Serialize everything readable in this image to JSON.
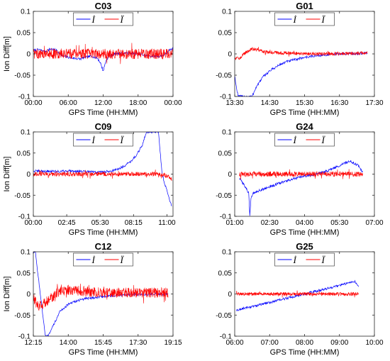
{
  "colors": {
    "series_a": "#0000ff",
    "series_b": "#ff0000"
  },
  "chart_data": [
    {
      "type": "line",
      "title": "C03",
      "xlabel": "GPS Time (HH:MM)",
      "ylabel": "Ion Diff[m]",
      "xlim": [
        0,
        24
      ],
      "ylim": [
        -0.1,
        0.1
      ],
      "x_ticks": [
        0,
        6,
        12,
        18,
        24
      ],
      "x_tick_labels": [
        "00:00",
        "06:00",
        "12:00",
        "18:00",
        "00:00"
      ],
      "y_ticks": [
        -0.1,
        -0.05,
        0,
        0.05,
        0.1
      ],
      "y_tick_labels": [
        "-0.1",
        "-0.05",
        "0",
        "0.05",
        "0.1"
      ],
      "legend": {
        "position": "top-center",
        "entries": [
          "İ",
          "Ï"
        ]
      },
      "series": [
        {
          "x": [
            0,
            1,
            2,
            3,
            4,
            5,
            6,
            7,
            8,
            9,
            10,
            11,
            11.5,
            12,
            12.5,
            13,
            14,
            16,
            18,
            20,
            22,
            23,
            23.5,
            24
          ],
          "y": [
            0.008,
            0.01,
            0.005,
            0.012,
            0.008,
            -0.005,
            -0.008,
            -0.01,
            -0.012,
            -0.008,
            -0.005,
            -0.01,
            -0.02,
            -0.04,
            -0.015,
            -0.005,
            0.0,
            0.002,
            0.0,
            -0.005,
            -0.005,
            0.002,
            0.01,
            0.012
          ]
        },
        {
          "x": [
            0,
            24
          ],
          "y": [
            0,
            0
          ],
          "noise_amplitude": 0.012
        }
      ]
    },
    {
      "type": "line",
      "title": "G01",
      "xlabel": "GPS Time (HH:MM)",
      "ylabel": "",
      "xlim": [
        13.5,
        17.5
      ],
      "ylim": [
        -0.1,
        0.1
      ],
      "x_ticks": [
        13.5,
        14.5,
        15.5,
        16.5,
        17.5
      ],
      "x_tick_labels": [
        "13:30",
        "14:30",
        "15:30",
        "16:30",
        "17:30"
      ],
      "y_ticks": [
        -0.1,
        -0.05,
        0,
        0.05,
        0.1
      ],
      "y_tick_labels": [
        "-0.1",
        "-0.05",
        "0",
        "0.05",
        "0.1"
      ],
      "legend": {
        "position": "top-center",
        "entries": [
          "İ",
          "Ï"
        ]
      },
      "series": [
        {
          "x": [
            13.5,
            13.55,
            13.6,
            13.62,
            14.0,
            14.1,
            14.3,
            14.5,
            14.8,
            15.0,
            15.5,
            16.0,
            16.5,
            17.0,
            17.3
          ],
          "y": [
            -0.05,
            -0.08,
            -0.1,
            -0.1,
            -0.1,
            -0.08,
            -0.055,
            -0.04,
            -0.025,
            -0.018,
            -0.008,
            -0.003,
            0.0,
            0.001,
            0.002
          ]
        },
        {
          "x": [
            13.5,
            13.65,
            13.8,
            14.0,
            14.3,
            14.6,
            15.0,
            15.5,
            16.0,
            17.3
          ],
          "y": [
            -0.01,
            -0.01,
            0.003,
            0.012,
            0.006,
            0.003,
            0.002,
            0.0,
            0.0,
            0.002
          ],
          "noise_amplitude": 0.004
        }
      ]
    },
    {
      "type": "line",
      "title": "C09",
      "xlabel": "GPS Time (HH:MM)",
      "ylabel": "Ion Diff[m]",
      "xlim": [
        0,
        11.5
      ],
      "ylim": [
        -0.1,
        0.1
      ],
      "x_ticks": [
        0,
        2.75,
        5.5,
        8.25,
        11
      ],
      "x_tick_labels": [
        "00:00",
        "02:45",
        "05:30",
        "08:15",
        "11:00"
      ],
      "y_ticks": [
        -0.1,
        -0.05,
        0,
        0.05,
        0.1
      ],
      "y_tick_labels": [
        "-0.1",
        "-0.05",
        "0",
        "0.05",
        "0.1"
      ],
      "legend": {
        "position": "top-center",
        "entries": [
          "İ",
          "Ï"
        ]
      },
      "series": [
        {
          "x": [
            0,
            1,
            2,
            3,
            4,
            5,
            5.5,
            6,
            6.5,
            7,
            7.5,
            8,
            8.5,
            9,
            9.3,
            9.6,
            10.3,
            10.6,
            10.8,
            11.0,
            11.2,
            11.4
          ],
          "y": [
            0.007,
            0.007,
            0.006,
            0.008,
            0.006,
            0.005,
            0.005,
            0.006,
            0.008,
            0.012,
            0.02,
            0.03,
            0.045,
            0.07,
            0.1,
            0.1,
            0.1,
            0.0,
            -0.02,
            -0.04,
            -0.06,
            -0.075
          ]
        },
        {
          "x": [
            0,
            10.5,
            11.0,
            11.4
          ],
          "y": [
            0,
            0,
            -0.005,
            -0.012
          ],
          "noise_amplitude": 0.005
        }
      ]
    },
    {
      "type": "line",
      "title": "G24",
      "xlabel": "GPS Time (HH:MM)",
      "ylabel": "",
      "xlim": [
        1,
        7
      ],
      "ylim": [
        -0.1,
        0.1
      ],
      "x_ticks": [
        1,
        2.5,
        4,
        5.5,
        7
      ],
      "x_tick_labels": [
        "01:00",
        "02:30",
        "04:00",
        "05:30",
        "07:00"
      ],
      "y_ticks": [
        -0.1,
        -0.05,
        0,
        0.05,
        0.1
      ],
      "y_tick_labels": [
        "-0.1",
        "-0.05",
        "0",
        "0.05",
        "0.1"
      ],
      "legend": {
        "position": "top-center",
        "entries": [
          "İ",
          "Ï"
        ]
      },
      "series": [
        {
          "x": [
            1.2,
            1.4,
            1.6,
            1.65,
            1.7,
            1.8,
            2.0,
            2.5,
            3.0,
            3.5,
            4.0,
            4.5,
            5.0,
            5.5,
            5.8,
            6.0,
            6.3,
            6.5
          ],
          "y": [
            -0.01,
            -0.025,
            -0.045,
            -0.1,
            -0.055,
            -0.045,
            -0.04,
            -0.03,
            -0.02,
            -0.012,
            -0.005,
            0.0,
            0.008,
            0.02,
            0.028,
            0.03,
            0.02,
            0.005
          ]
        },
        {
          "x": [
            1.2,
            6.5
          ],
          "y": [
            0,
            0
          ],
          "noise_amplitude": 0.006
        }
      ]
    },
    {
      "type": "line",
      "title": "C12",
      "xlabel": "GPS Time (HH:MM)",
      "ylabel": "Ion Diff[m]",
      "xlim": [
        12.25,
        19.25
      ],
      "ylim": [
        -0.1,
        0.1
      ],
      "x_ticks": [
        12.25,
        14,
        15.75,
        17.5,
        19.25
      ],
      "x_tick_labels": [
        "12:15",
        "14:00",
        "15:45",
        "17:30",
        "19:15"
      ],
      "y_ticks": [
        -0.1,
        -0.05,
        0,
        0.05,
        0.1
      ],
      "y_tick_labels": [
        "-0.1",
        "-0.05",
        "0",
        "0.05",
        "0.1"
      ],
      "legend": {
        "position": "top-center",
        "entries": [
          "İ",
          "Ï"
        ]
      },
      "series": [
        {
          "x": [
            12.25,
            12.35,
            12.45,
            12.55,
            12.7,
            12.85,
            13.0,
            13.2,
            13.4,
            13.6,
            14.0,
            14.5,
            15.0,
            16.0,
            17.0,
            18.0,
            19.0
          ],
          "y": [
            0.1,
            0.1,
            0.06,
            0.02,
            -0.04,
            -0.1,
            -0.1,
            -0.08,
            -0.06,
            -0.04,
            -0.025,
            -0.015,
            -0.01,
            -0.005,
            -0.002,
            -0.001,
            0.0
          ]
        },
        {
          "x": [
            12.25,
            12.5,
            13.0,
            13.5,
            14.0,
            14.5,
            15.0,
            16.0,
            19.0
          ],
          "y": [
            -0.01,
            -0.03,
            -0.015,
            0.005,
            0.01,
            0.008,
            0.005,
            0.003,
            0.003
          ],
          "noise_amplitude": 0.012
        }
      ]
    },
    {
      "type": "line",
      "title": "G25",
      "xlabel": "GPS Time (HH:MM)",
      "ylabel": "",
      "xlim": [
        6,
        10
      ],
      "ylim": [
        -0.1,
        0.1
      ],
      "x_ticks": [
        6,
        7,
        8,
        9,
        10
      ],
      "x_tick_labels": [
        "06:00",
        "07:00",
        "08:00",
        "09:00",
        "10:00"
      ],
      "y_ticks": [
        -0.1,
        -0.05,
        0,
        0.05,
        0.1
      ],
      "y_tick_labels": [
        "-0.1",
        "-0.05",
        "0",
        "0.05",
        "0.1"
      ],
      "legend": {
        "position": "top-center",
        "entries": [
          "İ",
          "Ï"
        ]
      },
      "series": [
        {
          "x": [
            6.05,
            6.2,
            6.5,
            7.0,
            7.5,
            8.0,
            8.5,
            9.0,
            9.3,
            9.45,
            9.55
          ],
          "y": [
            -0.04,
            -0.035,
            -0.03,
            -0.02,
            -0.01,
            0.0,
            0.01,
            0.02,
            0.028,
            0.03,
            0.015
          ]
        },
        {
          "x": [
            6.05,
            9.55
          ],
          "y": [
            0,
            0
          ],
          "noise_amplitude": 0.004
        }
      ]
    }
  ]
}
